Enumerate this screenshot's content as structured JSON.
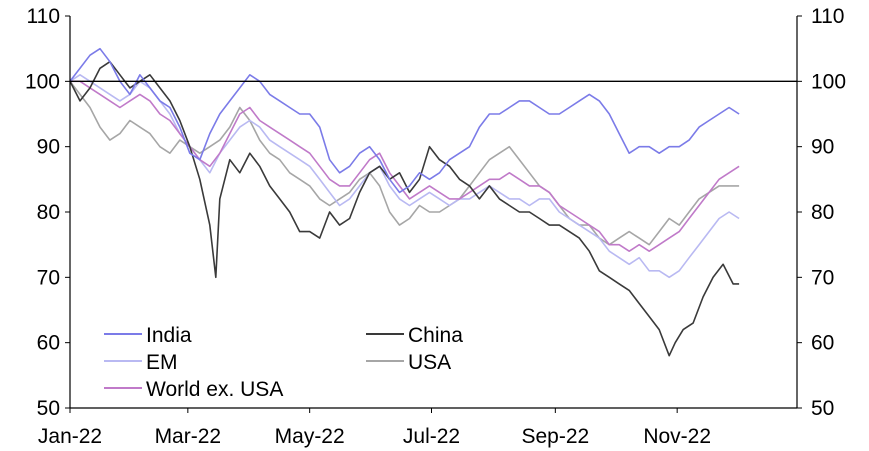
{
  "chart_data": {
    "type": "line",
    "title": "",
    "xlabel": "",
    "ylabel": "",
    "ylim": [
      50,
      110
    ],
    "y_ticks": [
      50,
      60,
      70,
      80,
      90,
      100,
      110
    ],
    "y_tick_labels": [
      "50",
      "60",
      "70",
      "80",
      "90",
      "100",
      "110"
    ],
    "x_ticks": [
      "2022-01-01",
      "2022-03-01",
      "2022-05-01",
      "2022-07-01",
      "2022-09-01",
      "2022-11-01"
    ],
    "x_tick_labels": [
      "Jan-22",
      "Mar-22",
      "May-22",
      "Jul-22",
      "Sep-22",
      "Nov-22"
    ],
    "xlim": [
      "2022-01-01",
      "2022-12-31"
    ],
    "reference_line": 100,
    "grid": false,
    "legend_position": "bottom-left",
    "series": [
      {
        "name": "India",
        "color": "#7b7be8",
        "x": [
          "2022-01-01",
          "2022-01-06",
          "2022-01-11",
          "2022-01-16",
          "2022-01-21",
          "2022-01-26",
          "2022-01-31",
          "2022-02-05",
          "2022-02-10",
          "2022-02-15",
          "2022-02-20",
          "2022-02-25",
          "2022-03-02",
          "2022-03-07",
          "2022-03-12",
          "2022-03-17",
          "2022-03-22",
          "2022-03-27",
          "2022-04-01",
          "2022-04-06",
          "2022-04-11",
          "2022-04-16",
          "2022-04-21",
          "2022-04-26",
          "2022-05-01",
          "2022-05-06",
          "2022-05-11",
          "2022-05-16",
          "2022-05-21",
          "2022-05-26",
          "2022-05-31",
          "2022-06-05",
          "2022-06-10",
          "2022-06-15",
          "2022-06-20",
          "2022-06-25",
          "2022-06-30",
          "2022-07-05",
          "2022-07-10",
          "2022-07-15",
          "2022-07-20",
          "2022-07-25",
          "2022-07-30",
          "2022-08-04",
          "2022-08-09",
          "2022-08-14",
          "2022-08-19",
          "2022-08-24",
          "2022-08-29",
          "2022-09-03",
          "2022-09-08",
          "2022-09-13",
          "2022-09-18",
          "2022-09-23",
          "2022-09-28",
          "2022-10-03",
          "2022-10-08",
          "2022-10-13",
          "2022-10-18",
          "2022-10-23",
          "2022-10-28",
          "2022-11-02",
          "2022-11-07",
          "2022-11-12",
          "2022-11-17",
          "2022-11-22",
          "2022-11-27",
          "2022-12-02"
        ],
        "values": [
          100,
          102,
          104,
          105,
          103,
          100,
          98,
          101,
          99,
          97,
          96,
          93,
          89,
          88,
          92,
          95,
          97,
          99,
          101,
          100,
          98,
          97,
          96,
          95,
          95,
          93,
          88,
          86,
          87,
          89,
          90,
          88,
          85,
          83,
          84,
          86,
          85,
          86,
          88,
          89,
          90,
          93,
          95,
          95,
          96,
          97,
          97,
          96,
          95,
          95,
          96,
          97,
          98,
          97,
          95,
          92,
          89,
          90,
          90,
          89,
          90,
          90,
          91,
          93,
          94,
          95,
          96,
          95
        ]
      },
      {
        "name": "China",
        "color": "#3a3a3a",
        "x": [
          "2022-01-01",
          "2022-01-06",
          "2022-01-11",
          "2022-01-16",
          "2022-01-21",
          "2022-01-26",
          "2022-01-31",
          "2022-02-05",
          "2022-02-10",
          "2022-02-15",
          "2022-02-20",
          "2022-02-25",
          "2022-03-02",
          "2022-03-07",
          "2022-03-12",
          "2022-03-15",
          "2022-03-17",
          "2022-03-22",
          "2022-03-27",
          "2022-04-01",
          "2022-04-06",
          "2022-04-11",
          "2022-04-16",
          "2022-04-21",
          "2022-04-26",
          "2022-05-01",
          "2022-05-06",
          "2022-05-11",
          "2022-05-16",
          "2022-05-21",
          "2022-05-26",
          "2022-05-31",
          "2022-06-05",
          "2022-06-10",
          "2022-06-15",
          "2022-06-20",
          "2022-06-25",
          "2022-06-30",
          "2022-07-05",
          "2022-07-10",
          "2022-07-15",
          "2022-07-20",
          "2022-07-25",
          "2022-07-30",
          "2022-08-04",
          "2022-08-09",
          "2022-08-14",
          "2022-08-19",
          "2022-08-24",
          "2022-08-29",
          "2022-09-03",
          "2022-09-08",
          "2022-09-13",
          "2022-09-18",
          "2022-09-23",
          "2022-09-28",
          "2022-10-03",
          "2022-10-08",
          "2022-10-13",
          "2022-10-18",
          "2022-10-23",
          "2022-10-28",
          "2022-10-31",
          "2022-11-04",
          "2022-11-09",
          "2022-11-14",
          "2022-11-19",
          "2022-11-24",
          "2022-11-29",
          "2022-12-02"
        ],
        "values": [
          100,
          97,
          99,
          102,
          103,
          101,
          99,
          100,
          101,
          99,
          97,
          94,
          90,
          85,
          78,
          70,
          82,
          88,
          86,
          89,
          87,
          84,
          82,
          80,
          77,
          77,
          76,
          80,
          78,
          79,
          83,
          86,
          87,
          85,
          86,
          83,
          85,
          90,
          88,
          87,
          85,
          84,
          82,
          84,
          82,
          81,
          80,
          80,
          79,
          78,
          78,
          77,
          76,
          74,
          71,
          70,
          69,
          68,
          66,
          64,
          62,
          58,
          60,
          62,
          63,
          67,
          70,
          72,
          69,
          69
        ]
      },
      {
        "name": "EM",
        "color": "#b9b9f2",
        "x": [
          "2022-01-01",
          "2022-01-06",
          "2022-01-11",
          "2022-01-16",
          "2022-01-21",
          "2022-01-26",
          "2022-01-31",
          "2022-02-05",
          "2022-02-10",
          "2022-02-15",
          "2022-02-20",
          "2022-02-25",
          "2022-03-02",
          "2022-03-07",
          "2022-03-12",
          "2022-03-17",
          "2022-03-22",
          "2022-03-27",
          "2022-04-01",
          "2022-04-06",
          "2022-04-11",
          "2022-04-16",
          "2022-04-21",
          "2022-04-26",
          "2022-05-01",
          "2022-05-06",
          "2022-05-11",
          "2022-05-16",
          "2022-05-21",
          "2022-05-26",
          "2022-05-31",
          "2022-06-05",
          "2022-06-10",
          "2022-06-15",
          "2022-06-20",
          "2022-06-25",
          "2022-06-30",
          "2022-07-05",
          "2022-07-10",
          "2022-07-15",
          "2022-07-20",
          "2022-07-25",
          "2022-07-30",
          "2022-08-04",
          "2022-08-09",
          "2022-08-14",
          "2022-08-19",
          "2022-08-24",
          "2022-08-29",
          "2022-09-03",
          "2022-09-08",
          "2022-09-13",
          "2022-09-18",
          "2022-09-23",
          "2022-09-28",
          "2022-10-03",
          "2022-10-08",
          "2022-10-13",
          "2022-10-18",
          "2022-10-23",
          "2022-10-28",
          "2022-11-02",
          "2022-11-07",
          "2022-11-12",
          "2022-11-17",
          "2022-11-22",
          "2022-11-27",
          "2022-12-02"
        ],
        "values": [
          100,
          101,
          100,
          99,
          98,
          97,
          98,
          100,
          99,
          97,
          95,
          92,
          90,
          88,
          86,
          89,
          91,
          93,
          94,
          93,
          91,
          90,
          89,
          88,
          87,
          85,
          83,
          81,
          82,
          84,
          86,
          87,
          84,
          82,
          81,
          82,
          83,
          82,
          81,
          82,
          82,
          83,
          84,
          83,
          82,
          82,
          81,
          82,
          82,
          80,
          79,
          78,
          77,
          76,
          74,
          73,
          72,
          73,
          71,
          71,
          70,
          71,
          73,
          75,
          77,
          79,
          80,
          79
        ]
      },
      {
        "name": "USA",
        "color": "#a6a6a6",
        "x": [
          "2022-01-01",
          "2022-01-06",
          "2022-01-11",
          "2022-01-16",
          "2022-01-21",
          "2022-01-26",
          "2022-01-31",
          "2022-02-05",
          "2022-02-10",
          "2022-02-15",
          "2022-02-20",
          "2022-02-25",
          "2022-03-02",
          "2022-03-07",
          "2022-03-12",
          "2022-03-17",
          "2022-03-22",
          "2022-03-27",
          "2022-04-01",
          "2022-04-06",
          "2022-04-11",
          "2022-04-16",
          "2022-04-21",
          "2022-04-26",
          "2022-05-01",
          "2022-05-06",
          "2022-05-11",
          "2022-05-16",
          "2022-05-21",
          "2022-05-26",
          "2022-05-31",
          "2022-06-05",
          "2022-06-10",
          "2022-06-15",
          "2022-06-20",
          "2022-06-25",
          "2022-06-30",
          "2022-07-05",
          "2022-07-10",
          "2022-07-15",
          "2022-07-20",
          "2022-07-25",
          "2022-07-30",
          "2022-08-04",
          "2022-08-09",
          "2022-08-14",
          "2022-08-19",
          "2022-08-24",
          "2022-08-29",
          "2022-09-03",
          "2022-09-08",
          "2022-09-13",
          "2022-09-18",
          "2022-09-23",
          "2022-09-28",
          "2022-10-03",
          "2022-10-08",
          "2022-10-13",
          "2022-10-18",
          "2022-10-23",
          "2022-10-28",
          "2022-11-02",
          "2022-11-07",
          "2022-11-12",
          "2022-11-17",
          "2022-11-22",
          "2022-11-27",
          "2022-12-02"
        ],
        "values": [
          100,
          98,
          96,
          93,
          91,
          92,
          94,
          93,
          92,
          90,
          89,
          91,
          90,
          89,
          90,
          91,
          93,
          96,
          94,
          91,
          89,
          88,
          86,
          85,
          84,
          82,
          81,
          82,
          83,
          85,
          86,
          84,
          80,
          78,
          79,
          81,
          80,
          80,
          81,
          82,
          84,
          86,
          88,
          89,
          90,
          88,
          86,
          84,
          83,
          81,
          79,
          78,
          78,
          76,
          75,
          76,
          77,
          76,
          75,
          77,
          79,
          78,
          80,
          82,
          83,
          84,
          84,
          84
        ]
      },
      {
        "name": "World ex. USA",
        "color": "#c07ac9",
        "x": [
          "2022-01-01",
          "2022-01-06",
          "2022-01-11",
          "2022-01-16",
          "2022-01-21",
          "2022-01-26",
          "2022-01-31",
          "2022-02-05",
          "2022-02-10",
          "2022-02-15",
          "2022-02-20",
          "2022-02-25",
          "2022-03-02",
          "2022-03-07",
          "2022-03-12",
          "2022-03-17",
          "2022-03-22",
          "2022-03-27",
          "2022-04-01",
          "2022-04-06",
          "2022-04-11",
          "2022-04-16",
          "2022-04-21",
          "2022-04-26",
          "2022-05-01",
          "2022-05-06",
          "2022-05-11",
          "2022-05-16",
          "2022-05-21",
          "2022-05-26",
          "2022-05-31",
          "2022-06-05",
          "2022-06-10",
          "2022-06-15",
          "2022-06-20",
          "2022-06-25",
          "2022-06-30",
          "2022-07-05",
          "2022-07-10",
          "2022-07-15",
          "2022-07-20",
          "2022-07-25",
          "2022-07-30",
          "2022-08-04",
          "2022-08-09",
          "2022-08-14",
          "2022-08-19",
          "2022-08-24",
          "2022-08-29",
          "2022-09-03",
          "2022-09-08",
          "2022-09-13",
          "2022-09-18",
          "2022-09-23",
          "2022-09-28",
          "2022-10-03",
          "2022-10-08",
          "2022-10-13",
          "2022-10-18",
          "2022-10-23",
          "2022-10-28",
          "2022-11-02",
          "2022-11-07",
          "2022-11-12",
          "2022-11-17",
          "2022-11-22",
          "2022-11-27",
          "2022-12-02"
        ],
        "values": [
          100,
          100,
          99,
          98,
          97,
          96,
          97,
          98,
          97,
          95,
          94,
          92,
          90,
          88,
          87,
          89,
          92,
          95,
          96,
          94,
          93,
          92,
          91,
          90,
          89,
          87,
          85,
          84,
          84,
          86,
          88,
          89,
          86,
          84,
          82,
          83,
          84,
          83,
          82,
          82,
          83,
          84,
          85,
          85,
          86,
          85,
          84,
          84,
          83,
          81,
          80,
          79,
          78,
          77,
          75,
          75,
          74,
          75,
          74,
          75,
          76,
          77,
          79,
          81,
          83,
          85,
          86,
          87
        ]
      }
    ]
  }
}
